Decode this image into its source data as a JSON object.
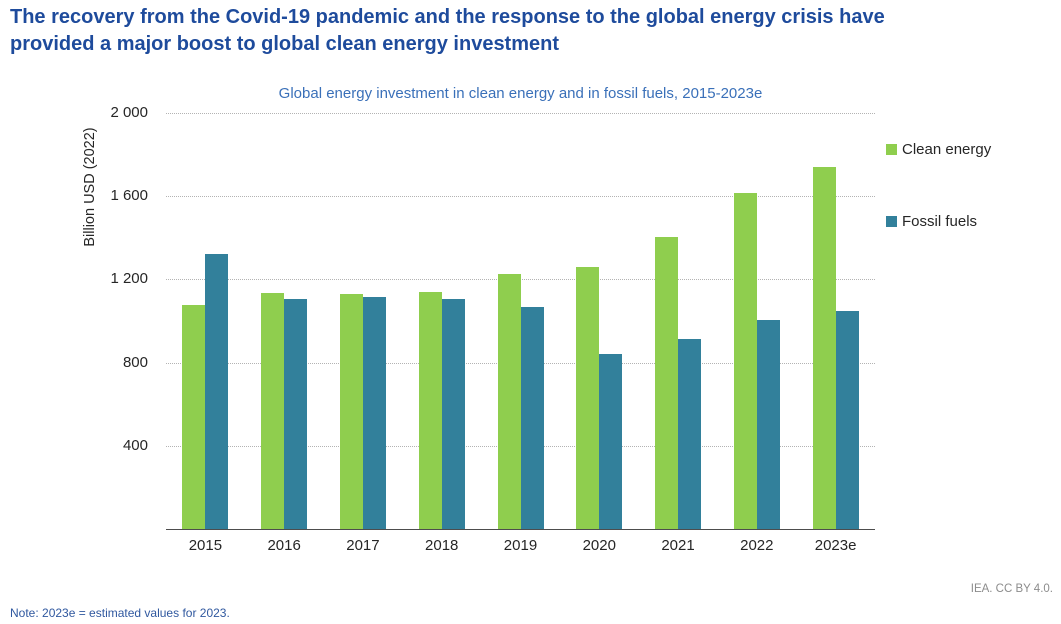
{
  "page": {
    "title_line1": "The recovery from the Covid-19 pandemic and the response to the global energy crisis have",
    "title_line2": "provided a major boost to global clean energy investment",
    "note": "Note:  2023e = estimated values for 2023.",
    "attribution": "IEA. CC BY 4.0."
  },
  "colors": {
    "title_blue": "#1e4b9c",
    "chart_title_blue": "#3a70b9",
    "clean_energy_green": "#8fce4e",
    "fossil_fuels_teal": "#32809b",
    "axis_text": "#262626",
    "gridline": "#b3b3b3",
    "axis_line": "#4d4d4d",
    "note_blue": "#30589f",
    "attribution_gray": "#8c8c8c"
  },
  "chart_data": {
    "type": "bar",
    "title": "Global energy investment in clean energy and in fossil fuels, 2015-2023e",
    "ylabel": "Billion USD (2022)",
    "xlabel": "",
    "categories": [
      "2015",
      "2016",
      "2017",
      "2018",
      "2019",
      "2020",
      "2021",
      "2022",
      "2023e"
    ],
    "series": [
      {
        "name": "Clean energy",
        "color": "#8fce4e",
        "values": [
          1075,
          1135,
          1130,
          1140,
          1225,
          1260,
          1405,
          1615,
          1740
        ]
      },
      {
        "name": "Fossil fuels",
        "color": "#32809b",
        "values": [
          1320,
          1105,
          1115,
          1105,
          1065,
          840,
          915,
          1005,
          1050
        ]
      }
    ],
    "ylim": [
      0,
      2000
    ],
    "yticks": [
      400,
      800,
      1200,
      1600,
      2000
    ],
    "ytick_labels": [
      "400",
      "800",
      "1 200",
      "1 600",
      "2 000"
    ],
    "grid": "horizontal-dotted",
    "legend_position": "right"
  }
}
